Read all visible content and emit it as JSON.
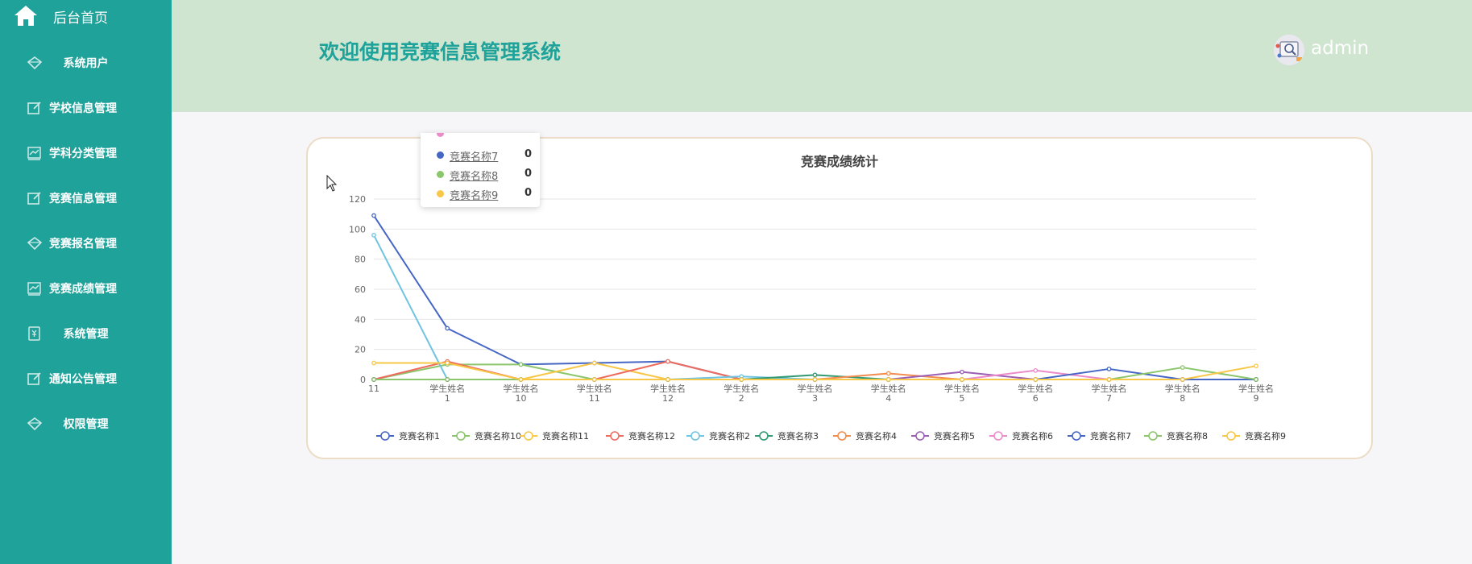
{
  "sidebar": {
    "home_label": "后台首页",
    "items": [
      {
        "label": "系统用户",
        "icon": "diamond-icon"
      },
      {
        "label": "学校信息管理",
        "icon": "edit-icon"
      },
      {
        "label": "学科分类管理",
        "icon": "chart-icon"
      },
      {
        "label": "竞赛信息管理",
        "icon": "edit-icon"
      },
      {
        "label": "竞赛报名管理",
        "icon": "diamond-icon"
      },
      {
        "label": "竞赛成绩管理",
        "icon": "chart-icon"
      },
      {
        "label": "系统管理",
        "icon": "yen-icon"
      },
      {
        "label": "通知公告管理",
        "icon": "edit-icon"
      },
      {
        "label": "权限管理",
        "icon": "diamond-icon"
      }
    ]
  },
  "header": {
    "title": "欢迎使用竞赛信息管理系统",
    "username": "admin"
  },
  "colors": {
    "sidebar_bg": "#1ea29a",
    "header_bg": "#cfe5d0",
    "title_color": "#1ea29a"
  },
  "tooltip": {
    "rows": [
      {
        "name": "竞赛名称7",
        "value": "0",
        "color": "#4666c4"
      },
      {
        "name": "竞赛名称8",
        "value": "0",
        "color": "#8bc56c"
      },
      {
        "name": "竞赛名称9",
        "value": "0",
        "color": "#f7c747"
      }
    ]
  },
  "chart_data": {
    "type": "line",
    "title": "竞赛成绩统计",
    "categories": [
      "11",
      "学生姓名1",
      "学生姓名10",
      "学生姓名11",
      "学生姓名12",
      "学生姓名2",
      "学生姓名3",
      "学生姓名4",
      "学生姓名5",
      "学生姓名6",
      "学生姓名7",
      "学生姓名8",
      "学生姓名9"
    ],
    "ylim": [
      0,
      120
    ],
    "yticks": [
      0,
      20,
      40,
      60,
      80,
      100,
      120
    ],
    "grid": true,
    "legend_position": "bottom",
    "series": [
      {
        "name": "竞赛名称1",
        "color": "#4666c4",
        "values": [
          109,
          34,
          10,
          11,
          12,
          0,
          0,
          0,
          0,
          0,
          0,
          0,
          0
        ]
      },
      {
        "name": "竞赛名称10",
        "color": "#8bc56c",
        "values": [
          0,
          10,
          10,
          0,
          0,
          0,
          0,
          0,
          0,
          0,
          0,
          0,
          0
        ]
      },
      {
        "name": "竞赛名称11",
        "color": "#f7c747",
        "values": [
          0,
          0,
          0,
          11,
          0,
          0,
          0,
          0,
          0,
          0,
          0,
          0,
          0
        ]
      },
      {
        "name": "竞赛名称12",
        "color": "#ee6c5e",
        "values": [
          0,
          12,
          0,
          0,
          12,
          0,
          0,
          0,
          0,
          0,
          0,
          0,
          0
        ]
      },
      {
        "name": "竞赛名称2",
        "color": "#6ec4e1",
        "values": [
          96,
          0,
          0,
          0,
          0,
          2,
          0,
          0,
          0,
          0,
          0,
          0,
          0
        ]
      },
      {
        "name": "竞赛名称3",
        "color": "#319a72",
        "values": [
          0,
          0,
          0,
          0,
          0,
          0,
          3,
          0,
          0,
          0,
          0,
          0,
          0
        ]
      },
      {
        "name": "竞赛名称4",
        "color": "#f28c4f",
        "values": [
          0,
          0,
          0,
          0,
          0,
          0,
          0,
          4,
          0,
          0,
          0,
          0,
          0
        ]
      },
      {
        "name": "竞赛名称5",
        "color": "#9b5fb4",
        "values": [
          0,
          0,
          0,
          0,
          0,
          0,
          0,
          0,
          5,
          0,
          0,
          0,
          0
        ]
      },
      {
        "name": "竞赛名称6",
        "color": "#ec8bc9",
        "values": [
          0,
          0,
          0,
          0,
          0,
          0,
          0,
          0,
          0,
          6,
          0,
          0,
          0
        ]
      },
      {
        "name": "竞赛名称7",
        "color": "#4666c4",
        "values": [
          0,
          0,
          0,
          0,
          0,
          0,
          0,
          0,
          0,
          0,
          7,
          0,
          0
        ]
      },
      {
        "name": "竞赛名称8",
        "color": "#8bc56c",
        "values": [
          0,
          0,
          0,
          0,
          0,
          0,
          0,
          0,
          0,
          0,
          0,
          8,
          0
        ]
      },
      {
        "name": "竞赛名称9",
        "color": "#f7c747",
        "values": [
          11,
          11,
          0,
          0,
          0,
          0,
          0,
          0,
          0,
          0,
          0,
          0,
          9
        ]
      }
    ]
  }
}
